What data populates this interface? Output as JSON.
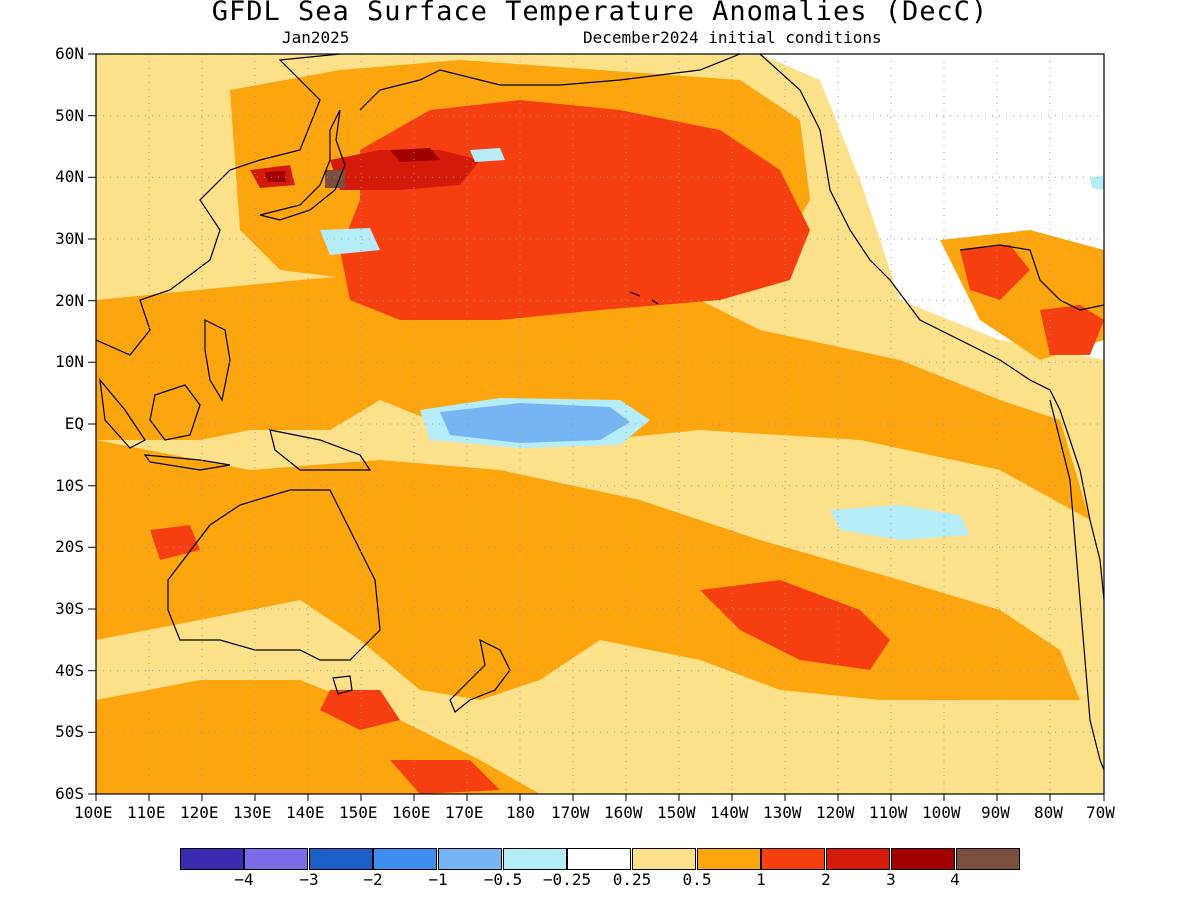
{
  "header": {
    "title": "GFDL Sea Surface Temperature Anomalies (DecC)",
    "valid_month": "Jan2025",
    "init_conditions": "December2024 initial conditions"
  },
  "map": {
    "projection": "equirectangular",
    "lon_range": [
      "100E",
      "70W"
    ],
    "lat_range": [
      "60S",
      "60N"
    ],
    "grid": "dotted",
    "lat_labels": [
      "60N",
      "50N",
      "40N",
      "30N",
      "20N",
      "10N",
      "EQ",
      "10S",
      "20S",
      "30S",
      "40S",
      "50S",
      "60S"
    ],
    "lon_labels": [
      "100E",
      "110E",
      "120E",
      "130E",
      "140E",
      "150E",
      "160E",
      "170E",
      "180",
      "170W",
      "160W",
      "150W",
      "140W",
      "130W",
      "120W",
      "110W",
      "100W",
      "90W",
      "80W",
      "70W"
    ]
  },
  "colorbar": {
    "colors": [
      "#3a2bb0",
      "#7b6be8",
      "#1c5fc8",
      "#3d8ef0",
      "#76b4f4",
      "#b4ecf8",
      "#ffffff",
      "#fde08a",
      "#fca50e",
      "#f53f10",
      "#d41a08",
      "#a00000",
      "#7a4f40"
    ],
    "labels": [
      "−4",
      "−3",
      "−2",
      "−1",
      "−0.5",
      "−0.25",
      "0.25",
      "0.5",
      "1",
      "2",
      "3",
      "4"
    ]
  },
  "chart_data": {
    "type": "heatmap",
    "title": "GFDL Sea Surface Temperature Anomalies (DecC)",
    "subtitle_left": "Jan2025",
    "subtitle_right": "December2024 initial conditions",
    "x_range": [
      "100E",
      "70W"
    ],
    "y_range": [
      "60S",
      "60N"
    ],
    "color_levels": [
      -4,
      -3,
      -2,
      -1,
      -0.5,
      -0.25,
      0.25,
      0.5,
      1,
      2,
      3,
      4
    ],
    "features": [
      {
        "region": "Central/eastern equatorial Pacific (170E-110W, 2S-5N)",
        "anomaly_range": [
          -0.5,
          0.25
        ],
        "core": [
          -1,
          -0.5
        ]
      },
      {
        "region": "North Pacific (140E-130W, 20N-50N)",
        "anomaly_range": [
          1,
          3
        ]
      },
      {
        "region": "Japan / Kuroshio extension (140E-160E, 35N-45N)",
        "anomaly_range": [
          3,
          4
        ]
      },
      {
        "region": "South Pacific (150W-110W, 25S-45S)",
        "anomaly_range": [
          1,
          2
        ]
      },
      {
        "region": "Western Pacific warm pool and Maritime Continent",
        "anomaly_range": [
          0.5,
          1
        ]
      },
      {
        "region": "Gulf of Mexico and Caribbean",
        "anomaly_range": [
          1,
          2
        ]
      }
    ]
  }
}
